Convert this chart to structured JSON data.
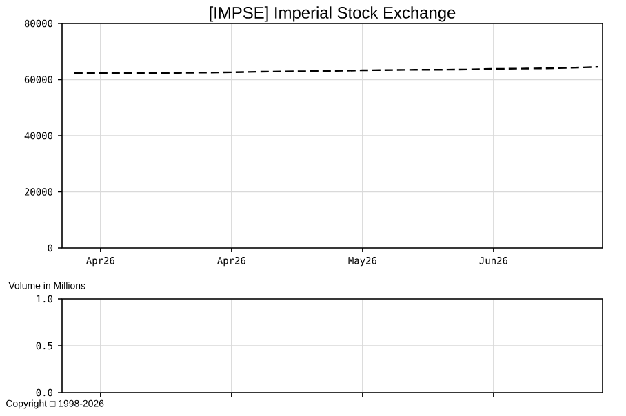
{
  "chart_data": [
    {
      "type": "line",
      "title": "[IMPSE] Imperial Stock Exchange",
      "categories": [
        null,
        "Apr26",
        null,
        null,
        null,
        null,
        "Apr26",
        null,
        null,
        null,
        null,
        "May26",
        null,
        null,
        null,
        null,
        "Jun26",
        null,
        null,
        null,
        null
      ],
      "ylim": [
        0,
        80000
      ],
      "yticks": [
        0,
        20000,
        40000,
        60000,
        80000
      ],
      "grid": true,
      "series": [
        {
          "color": "#000000",
          "line_style": "dashed",
          "marker": "none",
          "values": [
            62300,
            62300,
            62300,
            62300,
            62400,
            62500,
            62600,
            62800,
            62900,
            63000,
            63100,
            63300,
            63400,
            63500,
            63500,
            63600,
            63800,
            63900,
            64000,
            64200,
            64500
          ]
        }
      ]
    },
    {
      "type": "bar",
      "title": "Volume in Millions",
      "categories": [
        null,
        null,
        null,
        null,
        null,
        null,
        null,
        null,
        null,
        null,
        null,
        null,
        null,
        null,
        null,
        null,
        null,
        null,
        null,
        null,
        null
      ],
      "ylim": [
        0,
        1
      ],
      "yticks": [
        {
          "value": 0,
          "label": "0.0"
        },
        {
          "value": 0.5,
          "label": "0.5"
        },
        {
          "value": 1,
          "label": "1.0"
        }
      ],
      "grid": true,
      "tick_labels": "y",
      "annotations": [
        "Copyright □ 1998-2026"
      ]
    }
  ]
}
